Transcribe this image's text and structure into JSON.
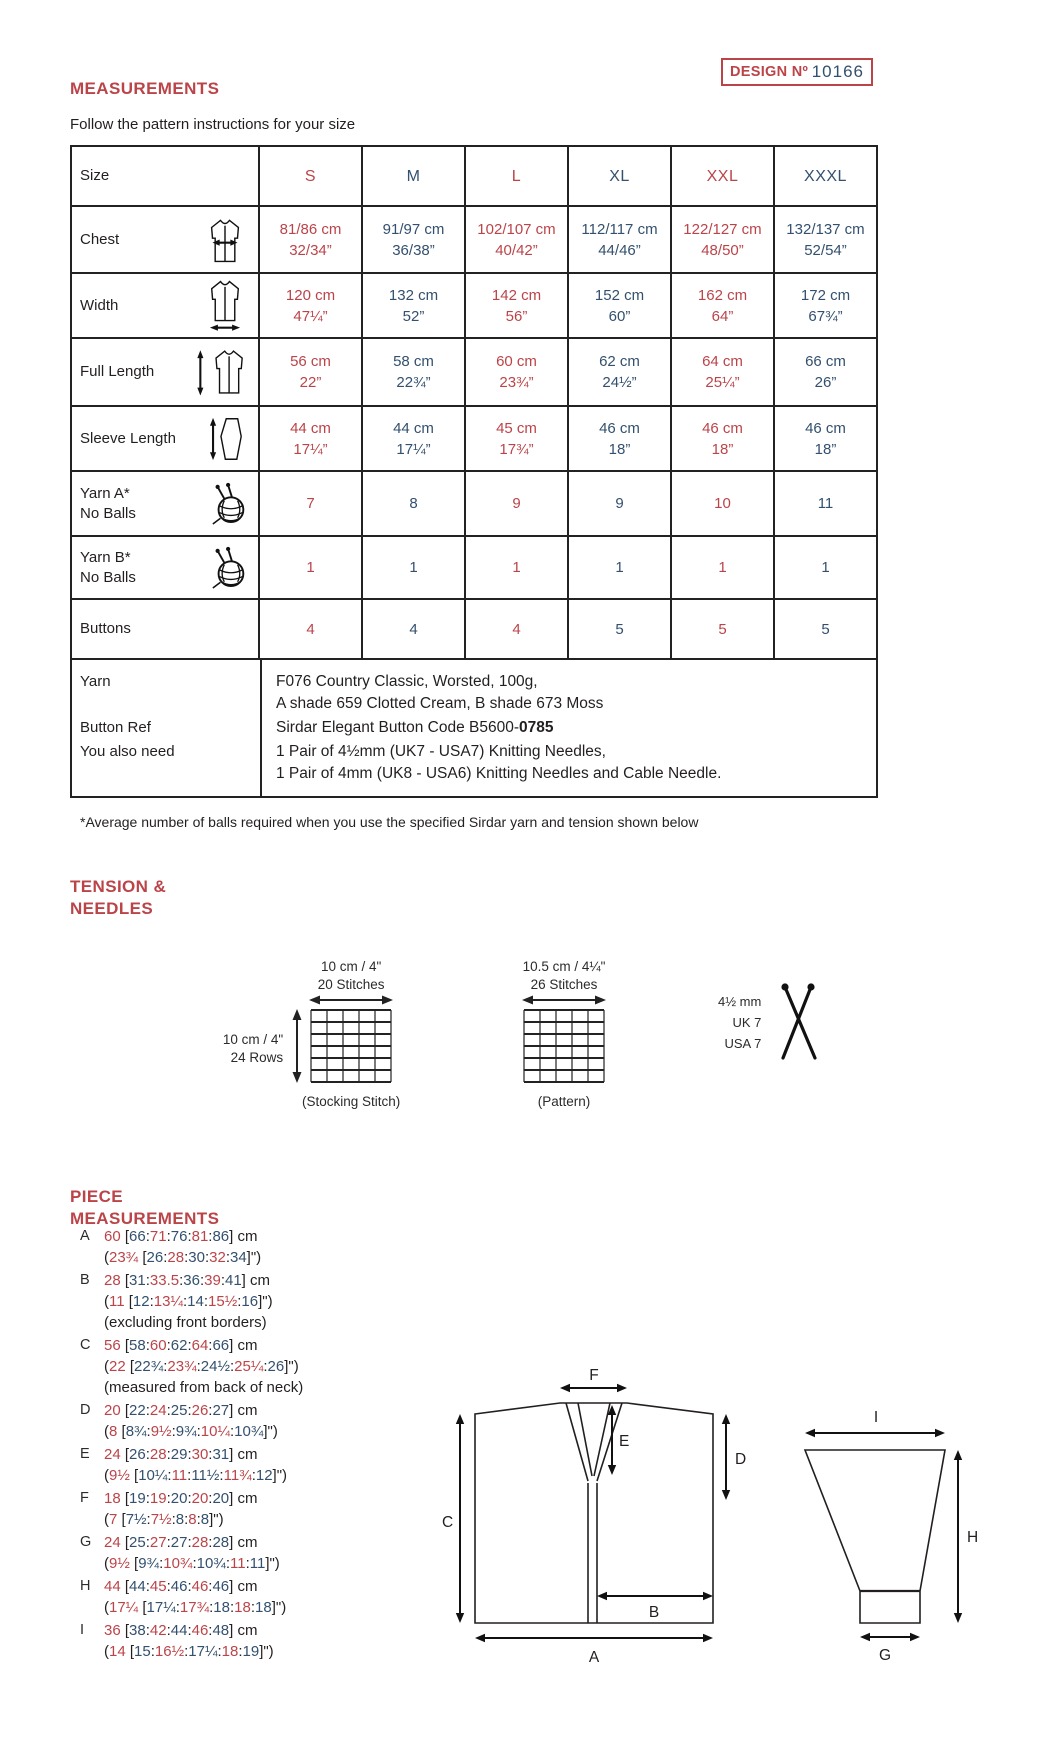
{
  "page": {
    "title": "MEASUREMENTS",
    "subtitle": "Follow the pattern instructions for your size",
    "design_label": "DESIGN Nº",
    "design_number": "10166",
    "footnote": "*Average number of balls required when you use the specified Sirdar yarn and tension shown below"
  },
  "colors": {
    "red": "#bb4449",
    "navy": "#33506e",
    "ink": "#231f20"
  },
  "table": {
    "size_label": "Size",
    "sizes": [
      "S",
      "M",
      "L",
      "XL",
      "XXL",
      "XXXL"
    ],
    "rows": [
      {
        "label": "Chest",
        "icon": "garment-chest-icon",
        "values": [
          "81/86 cm\n32/34”",
          "91/97 cm\n36/38”",
          "102/107 cm\n40/42”",
          "112/117 cm\n44/46”",
          "122/127 cm\n48/50”",
          "132/137 cm\n52/54”"
        ]
      },
      {
        "label": "Width",
        "icon": "garment-width-icon",
        "values": [
          "120 cm\n47¼”",
          "132 cm\n52”",
          "142 cm\n56”",
          "152 cm\n60”",
          "162 cm\n64”",
          "172 cm\n67¾”"
        ]
      },
      {
        "label": "Full Length",
        "icon": "garment-length-icon",
        "values": [
          "56 cm\n22”",
          "58 cm\n22¾”",
          "60 cm\n23¾”",
          "62 cm\n24½”",
          "64 cm\n25¼”",
          "66 cm\n26”"
        ]
      },
      {
        "label": "Sleeve Length",
        "icon": "sleeve-icon",
        "values": [
          "44 cm\n17¼”",
          "44 cm\n17¼”",
          "45 cm\n17¾”",
          "46 cm\n18”",
          "46 cm\n18”",
          "46 cm\n18”"
        ]
      },
      {
        "label": "Yarn A*\nNo Balls",
        "icon": "yarn-ball-icon",
        "values": [
          "7",
          "8",
          "9",
          "9",
          "10",
          "11"
        ]
      },
      {
        "label": "Yarn B*\nNo Balls",
        "icon": "yarn-ball-icon",
        "values": [
          "1",
          "1",
          "1",
          "1",
          "1",
          "1"
        ]
      },
      {
        "label": "Buttons",
        "icon": null,
        "values": [
          "4",
          "4",
          "4",
          "5",
          "5",
          "5"
        ]
      }
    ],
    "footer_rows": [
      {
        "label": "Yarn",
        "lines": [
          [
            {
              "t": "F076 Country Classic, Worsted, 100g,"
            }
          ],
          [
            {
              "t": "A shade 659 Clotted Cream, B shade 673 Moss"
            }
          ]
        ]
      },
      {
        "label": "Button Ref",
        "lines": [
          [
            {
              "t": "Sirdar Elegant Button Code B5600-"
            },
            {
              "t": "0785",
              "b": true
            }
          ]
        ]
      },
      {
        "label": "You also need",
        "lines": [
          [
            {
              "t": "1 Pair of 4½mm (UK7 - USA7) Knitting Needles,"
            }
          ],
          [
            {
              "t": "1 Pair of 4mm (UK8 - USA6) Knitting Needles and Cable Needle."
            }
          ]
        ]
      }
    ]
  },
  "tension": {
    "heading": "TENSION &\nNEEDLES",
    "stocking": {
      "top1": "10 cm / 4\"",
      "top2": "20 Stitches",
      "left1": "10 cm / 4\"",
      "left2": "24 Rows",
      "caption": "(Stocking Stitch)"
    },
    "pattern": {
      "top1": "10.5 cm / 4¼\"",
      "top2": "26 Stitches",
      "caption": "(Pattern)"
    },
    "needles": {
      "size": "4½ mm",
      "uk": "UK 7",
      "usa": "USA 7"
    }
  },
  "piece": {
    "heading": "PIECE\nMEASUREMENTS",
    "items": [
      {
        "key": "A",
        "cm": "60 [66:71:76:81:86] cm",
        "in": "(23¾ [26:28:30:32:34]\")"
      },
      {
        "key": "B",
        "cm": "28 [31:33.5:36:39:41] cm",
        "in": "(11 [12:13¼:14:15½:16]\")",
        "note": "(excluding front borders)"
      },
      {
        "key": "C",
        "cm": "56 [58:60:62:64:66] cm",
        "in": "(22 [22¾:23¾:24½:25¼:26]\")",
        "note": "(measured from back of neck)"
      },
      {
        "key": "D",
        "cm": "20 [22:24:25:26:27] cm",
        "in": "(8 [8¾:9½:9¾:10¼:10¾]\")"
      },
      {
        "key": "E",
        "cm": "24 [26:28:29:30:31] cm",
        "in": "(9½ [10¼:11:11½:11¾:12]\")"
      },
      {
        "key": "F",
        "cm": "18 [19:19:20:20:20] cm",
        "in": "(7 [7½:7½:8:8:8]\")"
      },
      {
        "key": "G",
        "cm": "24 [25:27:27:28:28] cm",
        "in": "(9½ [9¾:10¾:10¾:11:11]\")"
      },
      {
        "key": "H",
        "cm": "44 [44:45:46:46:46] cm",
        "in": "(17¼ [17¼:17¾:18:18:18]\")"
      },
      {
        "key": "I",
        "cm": "36 [38:42:44:46:48] cm",
        "in": "(14 [15:16½:17¼:18:19]\")"
      }
    ],
    "diagram_labels": {
      "A": "A",
      "B": "B",
      "C": "C",
      "D": "D",
      "E": "E",
      "F": "F",
      "G": "G",
      "H": "H",
      "I": "I"
    }
  }
}
